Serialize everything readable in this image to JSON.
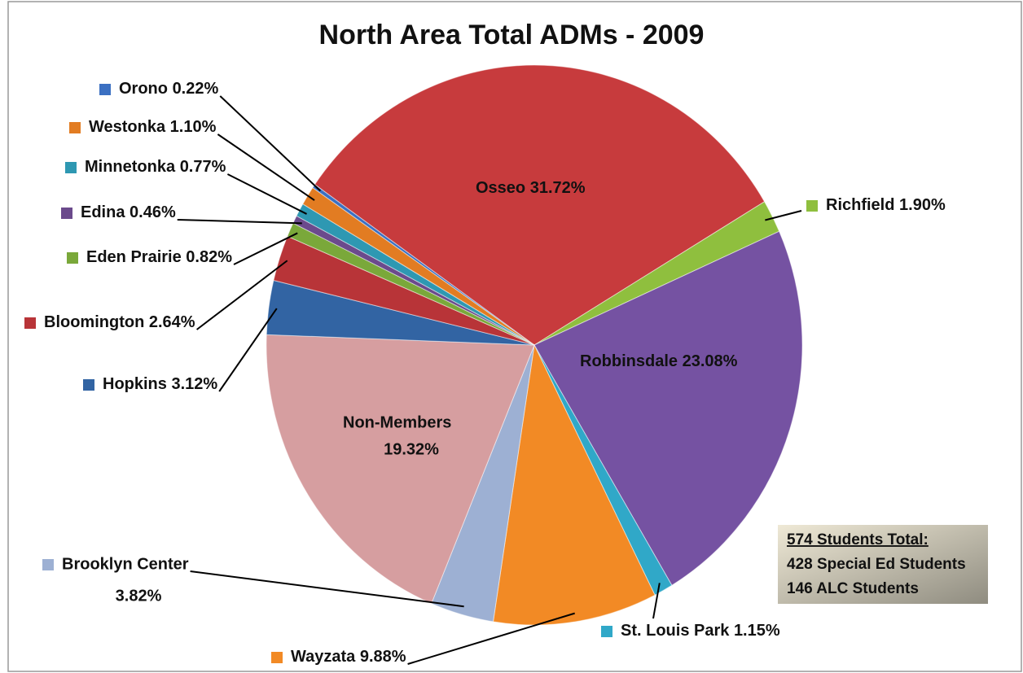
{
  "chart_data": {
    "type": "pie",
    "title": "North Area Total ADMs - 2009",
    "categories": [
      "Osseo",
      "Richfield",
      "Robbinsdale",
      "St. Louis Park",
      "Wayzata",
      "Brooklyn Center",
      "Non-Members",
      "Hopkins",
      "Bloomington",
      "Eden Prairie",
      "Edina",
      "Minnetonka",
      "Westonka",
      "Orono"
    ],
    "values": [
      31.72,
      1.9,
      23.08,
      1.15,
      9.88,
      3.82,
      19.32,
      3.12,
      2.64,
      0.82,
      0.46,
      0.77,
      1.1,
      0.22
    ],
    "value_labels": [
      "31.72%",
      "1.90%",
      "23.08%",
      "1.15%",
      "9.88%",
      "3.82%",
      "19.32%",
      "3.12%",
      "2.64%",
      "0.82%",
      "0.46%",
      "0.77%",
      "1.10%",
      "0.22%"
    ],
    "colors": [
      "#c73b3d",
      "#8fbf3e",
      "#7552a2",
      "#30a8c8",
      "#f28a25",
      "#9db0d3",
      "#d69ea0",
      "#3264a3",
      "#b83438",
      "#7aa83a",
      "#6b4a8c",
      "#2e98b2",
      "#e27c22",
      "#3b70c2"
    ],
    "annotations": [
      "574 Students Total:",
      "428 Special Ed Students",
      "146 ALC Students"
    ]
  }
}
